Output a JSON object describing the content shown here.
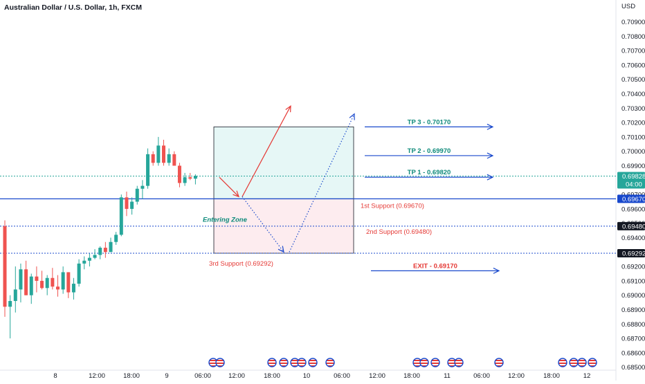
{
  "chart_title": "Australian Dollar / U.S. Dollar, 1h, FXCM",
  "currency_label": "USD",
  "chart_data": {
    "type": "candlestick",
    "symbol": "Australian Dollar / U.S. Dollar",
    "timeframe": "1h",
    "source": "FXCM",
    "y_range": [
      0.6848,
      0.7098
    ],
    "y_ticks": [
      "0.70900",
      "0.70800",
      "0.70700",
      "0.70600",
      "0.70500",
      "0.70400",
      "0.70300",
      "0.70200",
      "0.70100",
      "0.70000",
      "0.69900",
      "0.69800",
      "0.69700",
      "0.69600",
      "0.69500",
      "0.69400",
      "0.69300",
      "0.69200",
      "0.69100",
      "0.69000",
      "0.68900",
      "0.68800",
      "0.68700",
      "0.68600",
      "0.68500"
    ],
    "x_ticks": [
      "8",
      "12:00",
      "18:00",
      "9",
      "06:00",
      "12:00",
      "18:00",
      "10",
      "06:00",
      "12:00",
      "18:00",
      "11",
      "06:00",
      "12:00",
      "18:00",
      "12"
    ],
    "candles": [
      {
        "o": 0.6948,
        "h": 0.6952,
        "l": 0.6885,
        "c": 0.6892
      },
      {
        "o": 0.6892,
        "h": 0.69,
        "l": 0.687,
        "c": 0.6896
      },
      {
        "o": 0.6896,
        "h": 0.692,
        "l": 0.6888,
        "c": 0.6904
      },
      {
        "o": 0.6904,
        "h": 0.6922,
        "l": 0.6895,
        "c": 0.6918
      },
      {
        "o": 0.6918,
        "h": 0.6924,
        "l": 0.69,
        "c": 0.69
      },
      {
        "o": 0.69,
        "h": 0.6915,
        "l": 0.6894,
        "c": 0.6913
      },
      {
        "o": 0.6913,
        "h": 0.692,
        "l": 0.6902,
        "c": 0.691
      },
      {
        "o": 0.691,
        "h": 0.6917,
        "l": 0.6904,
        "c": 0.6905
      },
      {
        "o": 0.6905,
        "h": 0.6914,
        "l": 0.69,
        "c": 0.6912
      },
      {
        "o": 0.6912,
        "h": 0.6919,
        "l": 0.6904,
        "c": 0.6906
      },
      {
        "o": 0.6906,
        "h": 0.6914,
        "l": 0.6899,
        "c": 0.6904
      },
      {
        "o": 0.6904,
        "h": 0.692,
        "l": 0.6901,
        "c": 0.6916
      },
      {
        "o": 0.6916,
        "h": 0.6916,
        "l": 0.6898,
        "c": 0.6902
      },
      {
        "o": 0.6902,
        "h": 0.6912,
        "l": 0.6897,
        "c": 0.6908
      },
      {
        "o": 0.6908,
        "h": 0.6925,
        "l": 0.6906,
        "c": 0.6922
      },
      {
        "o": 0.6922,
        "h": 0.6927,
        "l": 0.6918,
        "c": 0.6924
      },
      {
        "o": 0.6924,
        "h": 0.6929,
        "l": 0.692,
        "c": 0.6926
      },
      {
        "o": 0.6926,
        "h": 0.6932,
        "l": 0.6925,
        "c": 0.6928
      },
      {
        "o": 0.6928,
        "h": 0.6934,
        "l": 0.6925,
        "c": 0.6933
      },
      {
        "o": 0.6933,
        "h": 0.6937,
        "l": 0.6926,
        "c": 0.693
      },
      {
        "o": 0.693,
        "h": 0.694,
        "l": 0.693,
        "c": 0.6937
      },
      {
        "o": 0.6937,
        "h": 0.6944,
        "l": 0.6935,
        "c": 0.6942
      },
      {
        "o": 0.6942,
        "h": 0.697,
        "l": 0.6941,
        "c": 0.6968
      },
      {
        "o": 0.6968,
        "h": 0.6972,
        "l": 0.6955,
        "c": 0.696
      },
      {
        "o": 0.696,
        "h": 0.6968,
        "l": 0.6956,
        "c": 0.6965
      },
      {
        "o": 0.6965,
        "h": 0.6976,
        "l": 0.6963,
        "c": 0.6974
      },
      {
        "o": 0.6974,
        "h": 0.698,
        "l": 0.6967,
        "c": 0.6976
      },
      {
        "o": 0.6976,
        "h": 0.7002,
        "l": 0.6974,
        "c": 0.6998
      },
      {
        "o": 0.6998,
        "h": 0.7,
        "l": 0.699,
        "c": 0.6992
      },
      {
        "o": 0.6992,
        "h": 0.701,
        "l": 0.699,
        "c": 0.7004
      },
      {
        "o": 0.7004,
        "h": 0.7008,
        "l": 0.699,
        "c": 0.6992
      },
      {
        "o": 0.6992,
        "h": 0.7002,
        "l": 0.699,
        "c": 0.6998
      },
      {
        "o": 0.6998,
        "h": 0.7,
        "l": 0.699,
        "c": 0.699
      },
      {
        "o": 0.699,
        "h": 0.6992,
        "l": 0.6975,
        "c": 0.6978
      },
      {
        "o": 0.6978,
        "h": 0.6985,
        "l": 0.6976,
        "c": 0.6982
      },
      {
        "o": 0.6982,
        "h": 0.6985,
        "l": 0.698,
        "c": 0.6981
      },
      {
        "o": 0.6981,
        "h": 0.6984,
        "l": 0.6977,
        "c": 0.6983
      }
    ],
    "price_badges": [
      {
        "label": "0.69828",
        "sub": "04:00",
        "value": 0.69828,
        "color": "#26a69a"
      },
      {
        "label": "0.69670",
        "value": 0.6967,
        "color": "#1848cc"
      },
      {
        "label": "0.69480",
        "value": 0.6948,
        "color": "#131722"
      },
      {
        "label": "0.69292",
        "value": 0.69292,
        "color": "#131722"
      }
    ],
    "horizontal_lines": [
      {
        "value": 0.6967,
        "style": "solid",
        "color": "#1848cc"
      },
      {
        "value": 0.6948,
        "style": "dotted",
        "color": "#1848cc"
      },
      {
        "value": 0.69292,
        "style": "dotted",
        "color": "#1848cc"
      },
      {
        "value": 0.69828,
        "style": "dotted",
        "color": "#26a69a"
      }
    ],
    "position_box": {
      "entry": 0.6967,
      "target": 0.7017,
      "stop": 0.69292,
      "profit_color": "#e6f7f6",
      "loss_color": "#fdecef"
    },
    "annotations": [
      {
        "text": "TP 3 - 0.70170",
        "value": 0.7017,
        "color": "#0d8a7a"
      },
      {
        "text": "TP 2 - 0.69970",
        "value": 0.6997,
        "color": "#0d8a7a"
      },
      {
        "text": "TP 1 - 0.69820",
        "value": 0.6982,
        "color": "#0d8a7a"
      },
      {
        "text": "EXIT - 0.69170",
        "value": 0.6917,
        "color": "#e53935"
      },
      {
        "text": "1st Support (0.69670)",
        "color": "#e53935"
      },
      {
        "text": "2nd Support (0.69480)",
        "color": "#e53935"
      },
      {
        "text": "3rd Support (0.69292)",
        "color": "#e53935"
      },
      {
        "text": "Entering Zone",
        "color": "#0d8a7a"
      }
    ],
    "colors": {
      "up": "#26a69a",
      "down": "#ef5350",
      "arrow_blue": "#1848cc",
      "arrow_red": "#e53935"
    }
  }
}
